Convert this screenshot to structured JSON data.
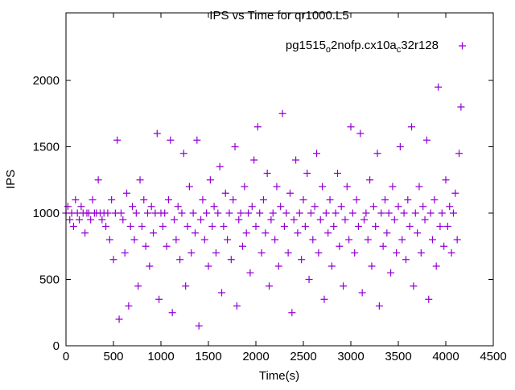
{
  "chart_data": {
    "type": "scatter",
    "title": "IPS vs Time for qr1000.L5",
    "xlabel": "Time(s)",
    "ylabel": "IPS",
    "xlim": [
      0,
      4500
    ],
    "ylim": [
      0,
      2500
    ],
    "xticks": [
      "0",
      "500",
      "1000",
      "1500",
      "2000",
      "2500",
      "3000",
      "3500",
      "4000",
      "4500"
    ],
    "yticks": [
      "0",
      "500",
      "1000",
      "1500",
      "2000"
    ],
    "grid": false,
    "legend_position": "top-right",
    "series": [
      {
        "name": "pg1515_o2nofp.cx10a_c32r128",
        "color": "#9400d3",
        "marker": "plus",
        "x_start": 0,
        "x_step": 20,
        "y": [
          1000,
          1050,
          950,
          1000,
          900,
          1100,
          1000,
          950,
          1050,
          1000,
          850,
          1000,
          1000,
          950,
          1100,
          1000,
          1000,
          1250,
          1000,
          950,
          1000,
          900,
          1000,
          800,
          1100,
          650,
          1000,
          1550,
          200,
          1000,
          950,
          700,
          1150,
          300,
          900,
          1050,
          800,
          1000,
          450,
          1250,
          900,
          1100,
          750,
          1000,
          600,
          1050,
          850,
          1000,
          1600,
          350,
          1000,
          900,
          1000,
          750,
          1100,
          1550,
          250,
          950,
          800,
          1050,
          650,
          1000,
          1450,
          450,
          900,
          1200,
          700,
          1000,
          850,
          1550,
          150,
          950,
          1100,
          800,
          1000,
          600,
          1250,
          900,
          1050,
          700,
          1000,
          1350,
          400,
          900,
          1150,
          800,
          1000,
          650,
          1100,
          1500,
          300,
          950,
          1000,
          750,
          1200,
          850,
          1000,
          550,
          1050,
          1400,
          900,
          1650,
          1000,
          700,
          1100,
          850,
          1300,
          450,
          950,
          1000,
          800,
          1200,
          600,
          1050,
          1750,
          900,
          1000,
          700,
          1150,
          250,
          950,
          1400,
          850,
          1000,
          650,
          1100,
          900,
          1300,
          500,
          1000,
          800,
          1050,
          1450,
          700,
          950,
          1200,
          350,
          1000,
          850,
          1100,
          600,
          900,
          1000,
          1300,
          750,
          1050,
          450,
          950,
          1200,
          800,
          1650,
          1000,
          700,
          1100,
          900,
          1600,
          400,
          950,
          1000,
          800,
          1250,
          600,
          1050,
          900,
          1450,
          300,
          1000,
          750,
          1100,
          850,
          1000,
          550,
          1200,
          950,
          700,
          1050,
          1500,
          800,
          1000,
          650,
          1100,
          900,
          1650,
          450,
          1000,
          850,
          1200,
          700,
          1050,
          950,
          1550,
          350,
          1000,
          800,
          1100,
          600,
          1950,
          900,
          1000,
          750,
          1250,
          900,
          1050,
          700,
          1000,
          1150,
          800,
          1450,
          1800
        ]
      }
    ]
  }
}
